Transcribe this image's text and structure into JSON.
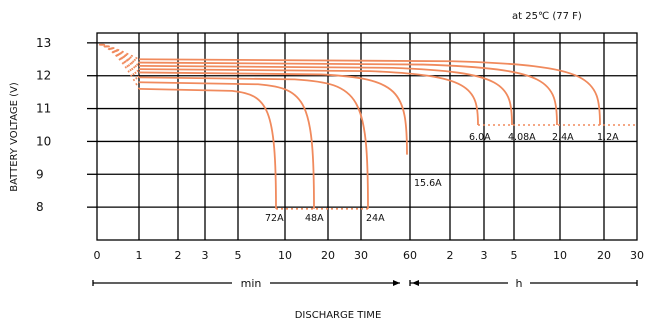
{
  "chart_data": {
    "type": "line",
    "annotation": "at 25℃ (77 F)",
    "ylabel": "BATTERY VOLTAGE (V)",
    "xlabel": "DISCHARGE TIME",
    "ylim": [
      7,
      13.3
    ],
    "y_ticks": [
      "8",
      "9",
      "10",
      "11",
      "12",
      "13"
    ],
    "x_ticks": [
      "0",
      "1",
      "2",
      "3",
      "5",
      "10",
      "20",
      "30",
      "60",
      "2",
      "3",
      "5",
      "10",
      "20",
      "30"
    ],
    "x_unit_groups": [
      {
        "label": "min",
        "from": "1",
        "to": "60"
      },
      {
        "label": "h",
        "from": "60",
        "to": "30"
      }
    ],
    "cutoff_lines": [
      {
        "voltage": 7.95,
        "from_label": "72A",
        "to_label": "24A"
      },
      {
        "voltage": 10.5,
        "from_label": "6.0A",
        "to_label": "1.2A"
      }
    ],
    "series": [
      {
        "name": "72A",
        "plateau_v": 11.6,
        "end_time": "9 min",
        "end_v": 7.95
      },
      {
        "name": "48A",
        "plateau_v": 11.8,
        "end_time": "15 min",
        "end_v": 7.95
      },
      {
        "name": "24A",
        "plateau_v": 11.95,
        "end_time": "32 min",
        "end_v": 7.95
      },
      {
        "name": "15.6A",
        "plateau_v": 12.1,
        "end_time": "60 min",
        "end_v": 9.6
      },
      {
        "name": "6.0A",
        "plateau_v": 12.2,
        "end_time": "3 h",
        "end_v": 10.5
      },
      {
        "name": "4.08A",
        "plateau_v": 12.3,
        "end_time": "5 h",
        "end_v": 10.5
      },
      {
        "name": "2.4A",
        "plateau_v": 12.4,
        "end_time": "10 h",
        "end_v": 10.5
      },
      {
        "name": "1.2A",
        "plateau_v": 12.5,
        "end_time": "20 h",
        "end_v": 10.5
      }
    ]
  }
}
